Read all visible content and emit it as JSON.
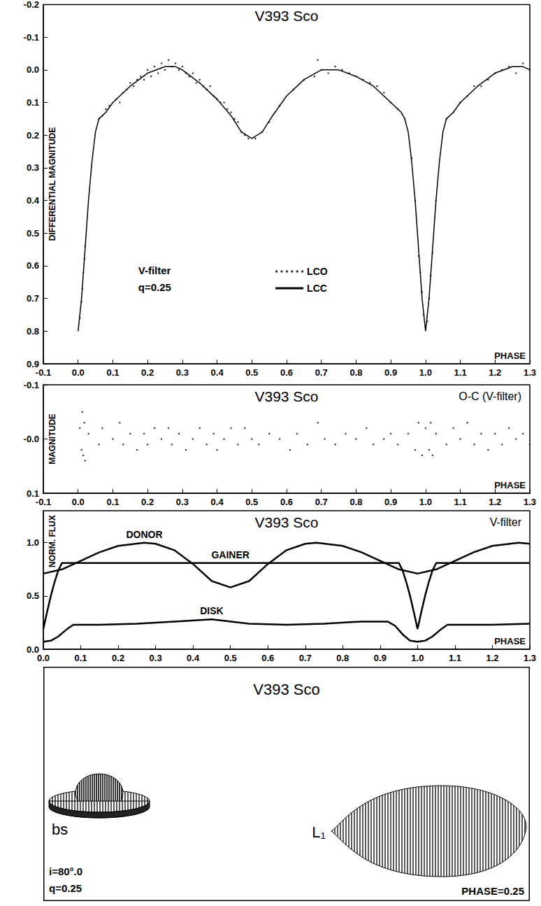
{
  "chart_data": [
    {
      "type": "line",
      "title": "V393 Sco",
      "ylabel": "DIFFERENTIAL MAGNITUDE",
      "xlabel": "PHASE",
      "notes": [
        "V-filter",
        "q=0.25"
      ],
      "legend": "center",
      "grid": false,
      "xlim": [
        -0.1,
        1.3
      ],
      "xticks": [
        -0.1,
        {
          "value": 0,
          "label": "0.0"
        },
        0.1,
        0.2,
        0.3,
        0.4,
        0.5,
        0.6,
        0.7,
        0.8,
        0.9,
        {
          "value": 1,
          "label": "1.0"
        },
        1.1,
        1.2,
        1.3
      ],
      "ylim": [
        0.9,
        -0.2
      ],
      "yticks": [
        -0.2,
        -0.1,
        {
          "value": 0,
          "label": "0.0"
        },
        0.1,
        0.2,
        0.3,
        0.4,
        0.5,
        0.6,
        0.7,
        0.8,
        0.9
      ],
      "series": [
        {
          "name": "LCO",
          "type": "scatter",
          "marker": "circle",
          "color": "#000000",
          "x": [
            0.005,
            0.01,
            0.012,
            0.015,
            0.018,
            0.02,
            0.06,
            0.07,
            0.08,
            0.09,
            0.11,
            0.12,
            0.13,
            0.14,
            0.15,
            0.16,
            0.17,
            0.18,
            0.19,
            0.2,
            0.21,
            0.22,
            0.23,
            0.24,
            0.25,
            0.26,
            0.27,
            0.28,
            0.29,
            0.3,
            0.31,
            0.32,
            0.33,
            0.34,
            0.35,
            0.36,
            0.37,
            0.38,
            0.39,
            0.4,
            0.41,
            0.42,
            0.43,
            0.44,
            0.45,
            0.46,
            0.47,
            0.48,
            0.49,
            0.51,
            0.53,
            0.55,
            0.58,
            0.62,
            0.65,
            0.68,
            0.69,
            0.7,
            0.72,
            0.74,
            0.76,
            0.78,
            0.8,
            0.82,
            0.84,
            0.86,
            0.88,
            0.9,
            0.92,
            0.94,
            0.96,
            0.97,
            0.98,
            0.985,
            0.99,
            0.995,
            1.005,
            1.01,
            1.015,
            1.02,
            1.03,
            1.06,
            1.08,
            1.1,
            1.12,
            1.14,
            1.16,
            1.18,
            1.2,
            1.22,
            1.24,
            1.26,
            1.28,
            1.3
          ],
          "values": [
            0.76,
            0.71,
            0.67,
            0.62,
            0.58,
            0.54,
            0.15,
            0.14,
            0.12,
            0.11,
            0.09,
            0.1,
            0.07,
            0.06,
            0.04,
            0.05,
            0.03,
            0.02,
            0.03,
            0.0,
            0.02,
            -0.01,
            0.01,
            -0.02,
            0.0,
            -0.03,
            -0.01,
            -0.02,
            0.0,
            -0.01,
            0.01,
            0.02,
            0.01,
            0.04,
            0.03,
            0.05,
            0.06,
            0.05,
            0.08,
            0.09,
            0.1,
            0.1,
            0.12,
            0.13,
            0.15,
            0.16,
            0.19,
            0.2,
            0.21,
            0.21,
            0.19,
            0.16,
            0.11,
            0.06,
            0.03,
            0.02,
            -0.03,
            0.0,
            0.01,
            -0.01,
            0.0,
            0.01,
            0.02,
            0.03,
            0.04,
            0.05,
            0.07,
            0.1,
            0.12,
            0.15,
            0.27,
            0.4,
            0.57,
            0.62,
            0.68,
            0.75,
            0.77,
            0.7,
            0.63,
            0.56,
            0.4,
            0.15,
            0.13,
            0.1,
            0.08,
            0.05,
            0.05,
            0.03,
            0.01,
            0.0,
            -0.01,
            0.01,
            -0.02,
            0.0
          ]
        },
        {
          "name": "LCC",
          "type": "line",
          "line_style": "solid",
          "color": "#000000",
          "x": [
            0.0,
            0.01,
            0.02,
            0.03,
            0.04,
            0.05,
            0.06,
            0.08,
            0.1,
            0.15,
            0.2,
            0.25,
            0.28,
            0.3,
            0.35,
            0.4,
            0.44,
            0.47,
            0.5,
            0.53,
            0.56,
            0.6,
            0.65,
            0.7,
            0.75,
            0.8,
            0.85,
            0.9,
            0.93,
            0.94,
            0.95,
            0.96,
            0.97,
            0.98,
            0.99,
            1.0,
            1.01,
            1.02,
            1.03,
            1.04,
            1.05,
            1.06,
            1.08,
            1.1,
            1.15,
            1.2,
            1.25,
            1.28,
            1.3
          ],
          "values": [
            0.8,
            0.7,
            0.55,
            0.4,
            0.28,
            0.19,
            0.15,
            0.13,
            0.1,
            0.05,
            0.01,
            -0.01,
            -0.01,
            0.0,
            0.04,
            0.09,
            0.14,
            0.19,
            0.21,
            0.19,
            0.14,
            0.08,
            0.03,
            0.0,
            0.0,
            0.02,
            0.05,
            0.1,
            0.13,
            0.15,
            0.19,
            0.28,
            0.4,
            0.55,
            0.7,
            0.8,
            0.7,
            0.55,
            0.4,
            0.28,
            0.19,
            0.15,
            0.13,
            0.1,
            0.05,
            0.01,
            -0.01,
            -0.01,
            0.0
          ]
        }
      ]
    },
    {
      "type": "scatter",
      "title": "V393 Sco",
      "subtitle": "O-C (V-filter)",
      "ylabel": "MAGNITUDE",
      "xlabel": "PHASE",
      "grid": false,
      "xlim": [
        -0.1,
        1.3
      ],
      "xticks": [
        -0.1,
        {
          "value": 0,
          "label": "0.0"
        },
        0.1,
        0.2,
        0.3,
        0.4,
        0.5,
        0.6,
        0.7,
        0.8,
        0.9,
        {
          "value": 1,
          "label": "1.0"
        },
        1.1,
        1.2,
        1.3
      ],
      "ylim": [
        0.1,
        -0.1
      ],
      "yticks": [
        -0.1,
        {
          "value": 0,
          "label": "-0.0"
        },
        0.1
      ],
      "series": [
        {
          "name": "O-C",
          "type": "scatter",
          "marker": "circle",
          "color": "#000000",
          "x": [
            0.005,
            0.01,
            0.012,
            0.015,
            0.018,
            0.02,
            0.03,
            0.06,
            0.07,
            0.1,
            0.12,
            0.13,
            0.15,
            0.17,
            0.19,
            0.2,
            0.22,
            0.24,
            0.26,
            0.27,
            0.29,
            0.31,
            0.33,
            0.35,
            0.37,
            0.39,
            0.4,
            0.42,
            0.44,
            0.46,
            0.48,
            0.5,
            0.52,
            0.55,
            0.58,
            0.61,
            0.63,
            0.66,
            0.69,
            0.71,
            0.74,
            0.77,
            0.8,
            0.83,
            0.85,
            0.88,
            0.9,
            0.92,
            0.95,
            0.97,
            0.98,
            0.99,
            1.0,
            1.01,
            1.015,
            1.02,
            1.03,
            1.06,
            1.08,
            1.1,
            1.12,
            1.14,
            1.16,
            1.18,
            1.2,
            1.22,
            1.24,
            1.26,
            1.28,
            1.3
          ],
          "values": [
            -0.02,
            0.02,
            -0.05,
            0.03,
            -0.03,
            0.04,
            -0.01,
            0.01,
            -0.02,
            0.0,
            -0.03,
            0.01,
            -0.01,
            0.02,
            -0.01,
            0.01,
            -0.02,
            0.0,
            -0.02,
            0.01,
            -0.01,
            0.02,
            0.0,
            -0.02,
            0.01,
            -0.01,
            0.02,
            0.0,
            -0.02,
            0.01,
            -0.02,
            0.0,
            0.01,
            -0.01,
            0.0,
            0.02,
            -0.01,
            0.01,
            -0.03,
            0.0,
            0.01,
            -0.01,
            0.0,
            -0.02,
            0.01,
            0.0,
            -0.01,
            0.01,
            -0.01,
            0.02,
            -0.03,
            0.03,
            -0.02,
            0.02,
            -0.03,
            0.03,
            -0.01,
            0.01,
            -0.02,
            0.0,
            -0.03,
            0.01,
            -0.01,
            0.02,
            -0.01,
            0.01,
            -0.02,
            0.0,
            -0.01,
            0.01
          ]
        }
      ]
    },
    {
      "type": "line",
      "title": "V393 Sco",
      "subtitle": "V-filter",
      "ylabel": "NORM. FLUX",
      "xlabel": "PHASE",
      "grid": false,
      "xlim": [
        0,
        1.3
      ],
      "xticks": [
        {
          "value": 0,
          "label": "0.0"
        },
        0.1,
        0.2,
        0.3,
        0.4,
        0.5,
        0.6,
        0.7,
        0.8,
        0.9,
        {
          "value": 1,
          "label": "1.0"
        },
        1.1,
        1.2,
        1.3
      ],
      "ylim": [
        0,
        1.3
      ],
      "yticks": [
        {
          "value": 0,
          "label": "0.0"
        },
        0.5,
        {
          "value": 1,
          "label": "1.0"
        }
      ],
      "series": [
        {
          "name": "DONOR",
          "line_style": "solid",
          "color": "#000000",
          "x": [
            0.0,
            0.05,
            0.1,
            0.15,
            0.2,
            0.27,
            0.3,
            0.35,
            0.4,
            0.45,
            0.5,
            0.55,
            0.6,
            0.65,
            0.7,
            0.73,
            0.8,
            0.85,
            0.9,
            0.95,
            1.0,
            1.05,
            1.1,
            1.15,
            1.2,
            1.27,
            1.3
          ],
          "values": [
            0.71,
            0.75,
            0.83,
            0.91,
            0.97,
            1.0,
            0.99,
            0.93,
            0.8,
            0.64,
            0.58,
            0.64,
            0.8,
            0.93,
            0.99,
            1.0,
            0.97,
            0.91,
            0.83,
            0.75,
            0.71,
            0.75,
            0.83,
            0.91,
            0.97,
            1.0,
            0.99
          ]
        },
        {
          "name": "GAINER",
          "line_style": "solid",
          "color": "#000000",
          "x": [
            0.0,
            0.01,
            0.02,
            0.03,
            0.04,
            0.05,
            0.1,
            0.15,
            0.2,
            0.25,
            0.3,
            0.35,
            0.4,
            0.45,
            0.5,
            0.55,
            0.6,
            0.65,
            0.7,
            0.75,
            0.8,
            0.85,
            0.9,
            0.95,
            0.96,
            0.97,
            0.98,
            0.99,
            1.0,
            1.01,
            1.02,
            1.03,
            1.04,
            1.05,
            1.1,
            1.15,
            1.2,
            1.25,
            1.3
          ],
          "values": [
            0.19,
            0.35,
            0.5,
            0.63,
            0.74,
            0.81,
            0.81,
            0.81,
            0.81,
            0.81,
            0.81,
            0.81,
            0.81,
            0.81,
            0.81,
            0.81,
            0.81,
            0.81,
            0.81,
            0.81,
            0.81,
            0.81,
            0.81,
            0.81,
            0.74,
            0.63,
            0.5,
            0.35,
            0.19,
            0.35,
            0.5,
            0.63,
            0.74,
            0.81,
            0.81,
            0.81,
            0.81,
            0.81,
            0.81
          ]
        },
        {
          "name": "DISK",
          "line_style": "solid",
          "color": "#000000",
          "x": [
            0.0,
            0.02,
            0.04,
            0.06,
            0.08,
            0.15,
            0.25,
            0.35,
            0.45,
            0.55,
            0.65,
            0.75,
            0.85,
            0.92,
            0.94,
            0.96,
            0.98,
            1.0,
            1.02,
            1.04,
            1.06,
            1.08,
            1.2,
            1.3
          ],
          "values": [
            0.07,
            0.08,
            0.12,
            0.18,
            0.23,
            0.23,
            0.24,
            0.26,
            0.28,
            0.24,
            0.23,
            0.24,
            0.26,
            0.26,
            0.22,
            0.14,
            0.08,
            0.07,
            0.08,
            0.12,
            0.18,
            0.23,
            0.23,
            0.24
          ]
        }
      ]
    }
  ],
  "diagram": {
    "title": "V393 Sco",
    "disk_label": "bs",
    "donor_label": "L₁",
    "notes": [
      "i=80°.0",
      "q=0.25"
    ],
    "phase_label": "PHASE=0.25"
  }
}
